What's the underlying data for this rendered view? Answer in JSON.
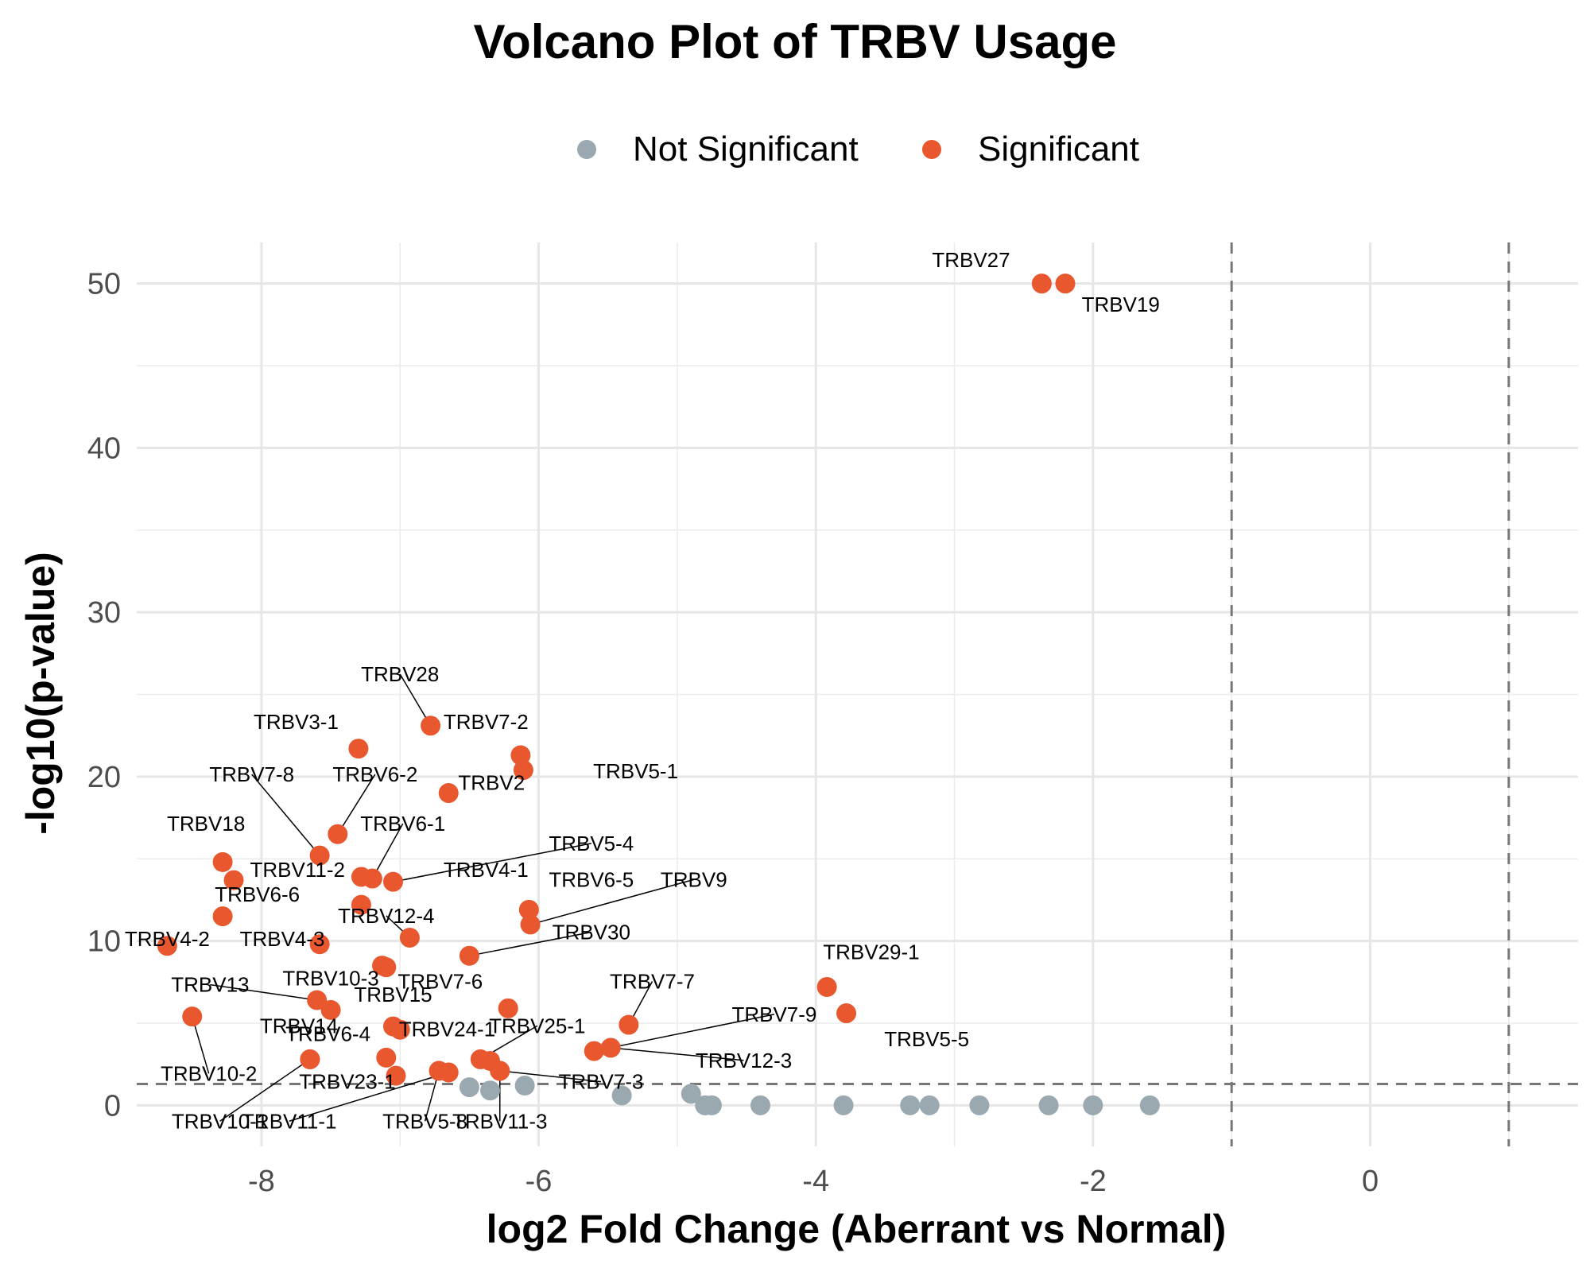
{
  "chart_data": {
    "type": "scatter",
    "title": "Volcano Plot of TRBV Usage",
    "xlabel": "log2 Fold Change (Aberrant vs Normal)",
    "ylabel": "-log10(p-value)",
    "xlim": [
      -8.9,
      1.5
    ],
    "ylim": [
      -2.5,
      52.5
    ],
    "x_ticks": [
      -8,
      -6,
      -4,
      -2,
      0
    ],
    "y_ticks": [
      0,
      10,
      20,
      30,
      40,
      50
    ],
    "grid": true,
    "legend_position": "top",
    "thresholds": {
      "vertical": [
        -1,
        1
      ],
      "horizontal": 1.3
    },
    "series": [
      {
        "name": "Not Significant",
        "color": "#9aa8b0",
        "points": [
          {
            "x": -6.5,
            "y": 1.1
          },
          {
            "x": -6.35,
            "y": 0.9
          },
          {
            "x": -6.1,
            "y": 1.2
          },
          {
            "x": -5.4,
            "y": 0.6
          },
          {
            "x": -4.9,
            "y": 0.7
          },
          {
            "x": -4.8,
            "y": 0.0
          },
          {
            "x": -4.75,
            "y": 0.0
          },
          {
            "x": -4.4,
            "y": 0.0
          },
          {
            "x": -3.8,
            "y": 0.0
          },
          {
            "x": -3.32,
            "y": 0.0
          },
          {
            "x": -3.18,
            "y": 0.0
          },
          {
            "x": -2.82,
            "y": 0.0
          },
          {
            "x": -2.32,
            "y": 0.0
          },
          {
            "x": -2.0,
            "y": 0.0
          },
          {
            "x": -1.59,
            "y": 0.0
          }
        ]
      },
      {
        "name": "Significant",
        "color": "#e8572e",
        "points": [
          {
            "x": -2.37,
            "y": 50.0,
            "label": "TRBV27",
            "lx": -2.88,
            "ly": 51.0
          },
          {
            "x": -2.2,
            "y": 50.0,
            "label": "TRBV19",
            "lx": -1.8,
            "ly": 48.3
          },
          {
            "x": -6.78,
            "y": 23.1,
            "label": "TRBV28",
            "lx": -7.0,
            "ly": 25.8,
            "leader": true
          },
          {
            "x": -7.3,
            "y": 21.7,
            "label": "TRBV3-1",
            "lx": -7.75,
            "ly": 22.9
          },
          {
            "x": -6.13,
            "y": 21.3,
            "label": "TRBV7-2",
            "lx": -6.38,
            "ly": 22.9
          },
          {
            "x": -6.11,
            "y": 20.4,
            "label": "TRBV5-1",
            "lx": -5.3,
            "ly": 19.9
          },
          {
            "x": -6.65,
            "y": 19.0,
            "label": "TRBV2",
            "lx": -6.34,
            "ly": 19.2
          },
          {
            "x": -7.45,
            "y": 16.5,
            "label": "TRBV6-2",
            "lx": -7.18,
            "ly": 19.7,
            "leader": true
          },
          {
            "x": -7.58,
            "y": 15.2,
            "label": "TRBV7-8",
            "lx": -8.07,
            "ly": 19.7,
            "leader": true
          },
          {
            "x": -8.28,
            "y": 14.8,
            "label": "TRBV18",
            "lx": -8.4,
            "ly": 16.7
          },
          {
            "x": -8.2,
            "y": 13.7,
            "label": "TRBV11-2",
            "lx": -7.74,
            "ly": 13.9
          },
          {
            "x": -7.2,
            "y": 13.8,
            "label": "TRBV6-1",
            "lx": -6.98,
            "ly": 16.7,
            "leader": true
          },
          {
            "x": -7.28,
            "y": 13.9
          },
          {
            "x": -7.05,
            "y": 13.6,
            "label": "TRBV5-4",
            "lx": -5.62,
            "ly": 15.5,
            "leader": true
          },
          {
            "x": -7.28,
            "y": 12.2,
            "label": "TRBV4-1",
            "lx": -6.38,
            "ly": 13.9
          },
          {
            "x": -8.28,
            "y": 11.5,
            "label": "TRBV6-6",
            "lx": -8.03,
            "ly": 12.4
          },
          {
            "x": -6.07,
            "y": 11.9,
            "label": "TRBV6-5",
            "lx": -5.62,
            "ly": 13.3
          },
          {
            "x": -6.06,
            "y": 11.0,
            "label": "TRBV9",
            "lx": -4.88,
            "ly": 13.3,
            "leader": true
          },
          {
            "x": -6.93,
            "y": 10.2,
            "label": "TRBV12-4",
            "lx": -7.1,
            "ly": 11.1,
            "leader": true
          },
          {
            "x": -7.58,
            "y": 9.8,
            "label": "TRBV4-3",
            "lx": -7.85,
            "ly": 9.7
          },
          {
            "x": -8.68,
            "y": 9.7,
            "label": "TRBV4-2",
            "lx": -8.68,
            "ly": 9.7
          },
          {
            "x": -6.5,
            "y": 9.1,
            "label": "TRBV30",
            "lx": -5.62,
            "ly": 10.1,
            "leader": true
          },
          {
            "x": -7.13,
            "y": 8.5
          },
          {
            "x": -7.1,
            "y": 8.4,
            "label": "TRBV10-3",
            "lx": -7.5,
            "ly": 7.3
          },
          {
            "x": -7.6,
            "y": 6.4,
            "label": "TRBV13",
            "lx": -8.37,
            "ly": 6.9,
            "leader": true
          },
          {
            "x": -7.5,
            "y": 5.8,
            "label": "TRBV15",
            "lx": -7.05,
            "ly": 6.3
          },
          {
            "x": -6.22,
            "y": 5.9,
            "label": "TRBV7-6",
            "lx": -6.71,
            "ly": 7.1
          },
          {
            "x": -5.35,
            "y": 4.9,
            "label": "TRBV7-7",
            "lx": -5.18,
            "ly": 7.1,
            "leader": true
          },
          {
            "x": -3.92,
            "y": 7.2,
            "label": "TRBV29-1",
            "lx": -3.6,
            "ly": 8.9
          },
          {
            "x": -3.78,
            "y": 5.6,
            "label": "TRBV5-5",
            "lx": -3.2,
            "ly": 3.6
          },
          {
            "x": -5.6,
            "y": 3.3,
            "label": "TRBV7-9",
            "lx": -4.3,
            "ly": 5.1,
            "leader": true
          },
          {
            "x": -5.48,
            "y": 3.5,
            "label": "TRBV12-3",
            "lx": -4.52,
            "ly": 2.3,
            "leader": true
          },
          {
            "x": -8.5,
            "y": 5.4,
            "label": "TRBV10-2",
            "lx": -8.38,
            "ly": 1.5,
            "leader": true
          },
          {
            "x": -7.05,
            "y": 4.8,
            "label": "TRBV14",
            "lx": -7.73,
            "ly": 4.4
          },
          {
            "x": -7.0,
            "y": 4.6,
            "label": "TRBV24-1",
            "lx": -6.66,
            "ly": 4.2
          },
          {
            "x": -6.42,
            "y": 2.8,
            "label": "TRBV25-1",
            "lx": -6.01,
            "ly": 4.4,
            "leader": true
          },
          {
            "x": -6.35,
            "y": 2.7
          },
          {
            "x": -7.65,
            "y": 2.8,
            "label": "TRBV6-4",
            "lx": -7.52,
            "ly": 3.9
          },
          {
            "x": -7.1,
            "y": 2.9
          },
          {
            "x": -7.03,
            "y": 1.8,
            "label": "TRBV23-1",
            "lx": -7.38,
            "ly": 1.0
          },
          {
            "x": -6.28,
            "y": 2.1,
            "label": "TRBV7-3",
            "lx": -5.55,
            "ly": 1.0,
            "leader": true
          },
          {
            "x": -6.72,
            "y": 2.1,
            "label": "TRBV5-8",
            "lx": -6.82,
            "ly": -1.4,
            "leader": true
          },
          {
            "x": -6.65,
            "y": 2.0,
            "label": "TRBV11-1",
            "lx": -7.8,
            "ly": -1.4,
            "leader": true
          },
          {
            "x": -7.65,
            "y": 2.8,
            "label": "TRBV10-1",
            "lx": -8.3,
            "ly": -1.4,
            "leader": true
          },
          {
            "x": -6.28,
            "y": 2.1,
            "label": "TRBV11-3",
            "lx": -6.28,
            "ly": -1.4,
            "leader": true
          }
        ]
      }
    ]
  }
}
